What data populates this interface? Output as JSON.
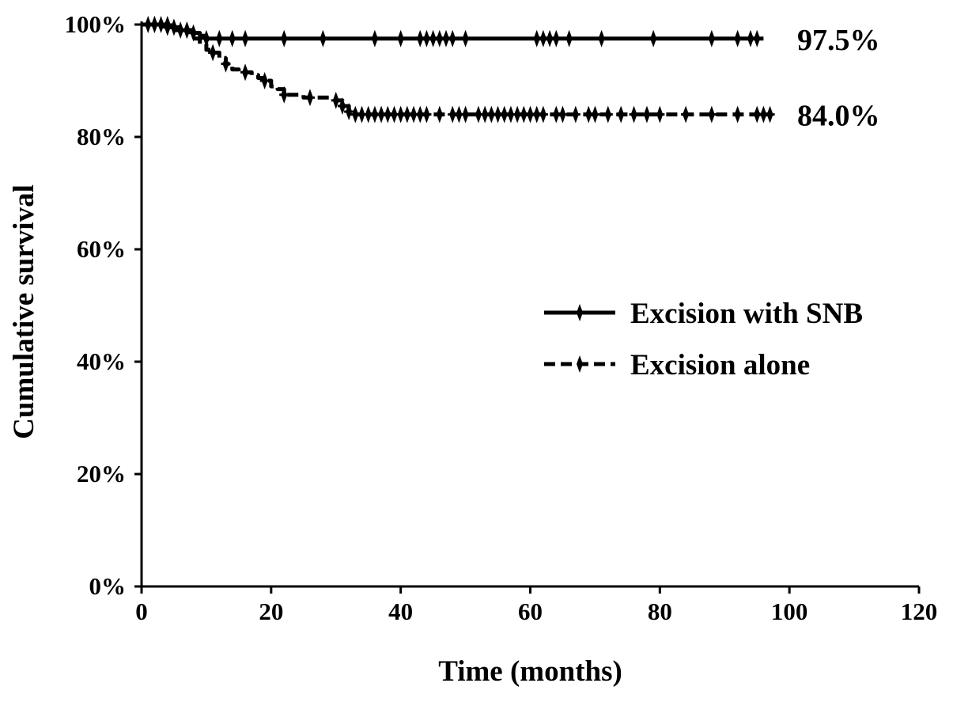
{
  "chart_data": {
    "type": "line",
    "title": "",
    "xlabel": "Time (months)",
    "ylabel": "Cumulative survival",
    "xlim": [
      0,
      120
    ],
    "ylim": [
      0,
      100
    ],
    "xticks": [
      0,
      20,
      40,
      60,
      80,
      100,
      120
    ],
    "xtick_labels": [
      "0",
      "20",
      "40",
      "60",
      "80",
      "100",
      "120"
    ],
    "yticks": [
      0,
      20,
      40,
      60,
      80,
      100
    ],
    "ytick_labels": [
      "0%",
      "20%",
      "40%",
      "60%",
      "80%",
      "100%"
    ],
    "grid": false,
    "legend_position": "right-middle",
    "series": [
      {
        "name": "Excision with SNB",
        "line_style": "solid",
        "color": "#000000",
        "end_label": "97.5%",
        "x": [
          0,
          2,
          4,
          6,
          8,
          9,
          10,
          12,
          96
        ],
        "y": [
          100,
          100,
          99.5,
          99,
          98.5,
          98,
          97.5,
          97.5,
          97.5
        ],
        "censor_times": [
          1,
          2,
          3,
          4,
          5,
          6,
          7,
          8,
          10,
          12,
          14,
          16,
          22,
          28,
          36,
          40,
          43,
          44,
          45,
          46,
          47,
          48,
          50,
          61,
          62,
          63,
          64,
          66,
          71,
          79,
          88,
          92,
          94,
          95
        ]
      },
      {
        "name": "Excision alone",
        "line_style": "dashed",
        "color": "#000000",
        "end_label": "84.0%",
        "x": [
          0,
          5,
          8,
          9,
          10,
          11,
          12,
          13,
          14,
          15,
          17,
          18,
          19,
          20,
          21,
          22,
          25,
          30,
          31,
          32,
          33,
          97
        ],
        "y": [
          100,
          99,
          97.5,
          96.5,
          95.5,
          95,
          94,
          93,
          92,
          91.5,
          91,
          90.5,
          90,
          89,
          88.5,
          87.5,
          87,
          86.5,
          85.5,
          84.5,
          84,
          84
        ],
        "censor_times": [
          2,
          4,
          7,
          11,
          13,
          16,
          19,
          22,
          26,
          30,
          31,
          32,
          33,
          34,
          35,
          36,
          37,
          38,
          39,
          40,
          41,
          42,
          43,
          44,
          46,
          48,
          49,
          50,
          52,
          53,
          54,
          55,
          56,
          57,
          58,
          59,
          60,
          61,
          62,
          64,
          65,
          67,
          69,
          70,
          72,
          74,
          76,
          78,
          80,
          84,
          88,
          92,
          95,
          96,
          97
        ]
      }
    ]
  }
}
